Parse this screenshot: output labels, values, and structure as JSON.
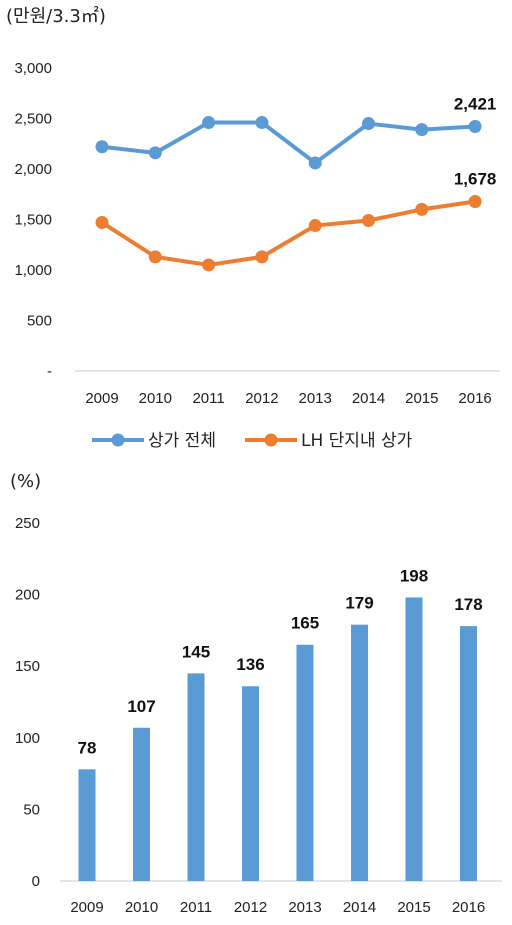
{
  "chart_data": [
    {
      "type": "line",
      "unit_label": "(만원/3.3㎡)",
      "x": [
        "2009",
        "2010",
        "2011",
        "2012",
        "2013",
        "2014",
        "2015",
        "2016"
      ],
      "ylim": [
        0,
        3000
      ],
      "yticks": [
        "-",
        "500",
        "1,000",
        "1,500",
        "2,000",
        "2,500",
        "3,000"
      ],
      "ytick_values": [
        0,
        500,
        1000,
        1500,
        2000,
        2500,
        3000
      ],
      "grid": false,
      "legend_position": "bottom",
      "series": [
        {
          "name": "상가 전체",
          "color": "#5B9BD5",
          "values": [
            2220,
            2160,
            2460,
            2460,
            2060,
            2450,
            2390,
            2421
          ],
          "end_label": "2,421"
        },
        {
          "name": "LH 단지내 상가",
          "color": "#ED7D31",
          "values": [
            1470,
            1130,
            1050,
            1130,
            1440,
            1490,
            1600,
            1678
          ],
          "end_label": "1,678"
        }
      ]
    },
    {
      "type": "bar",
      "unit_label": "(%)",
      "categories": [
        "2009",
        "2010",
        "2011",
        "2012",
        "2013",
        "2014",
        "2015",
        "2016"
      ],
      "values": [
        78,
        107,
        145,
        136,
        165,
        179,
        198,
        178
      ],
      "value_labels": [
        "78",
        "107",
        "145",
        "136",
        "165",
        "179",
        "198",
        "178"
      ],
      "ylim": [
        0,
        250
      ],
      "yticks": [
        "0",
        "50",
        "100",
        "150",
        "200",
        "250"
      ],
      "ytick_values": [
        0,
        50,
        100,
        150,
        200,
        250
      ],
      "grid": false,
      "color": "#5B9BD5"
    }
  ]
}
